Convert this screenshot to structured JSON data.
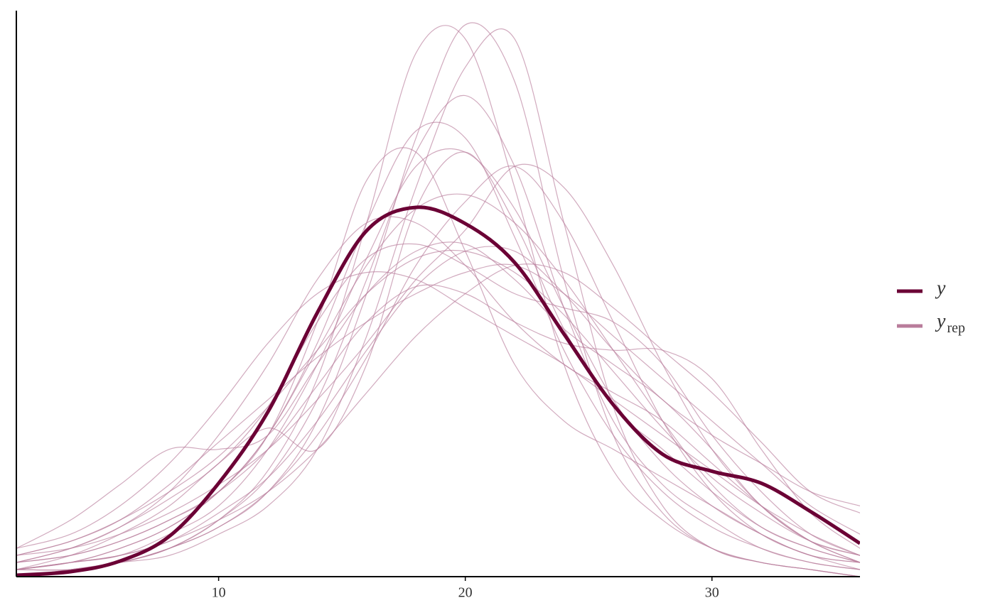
{
  "chart_data": {
    "type": "density",
    "x": [
      1.8,
      4,
      6,
      8,
      10,
      12,
      14,
      16,
      18,
      20,
      22,
      24,
      26,
      28,
      30,
      32,
      34,
      36
    ],
    "xlim": [
      1.8,
      36
    ],
    "xticks": [
      10,
      20,
      30
    ],
    "ylim": [
      0,
      0.08
    ],
    "series": [
      {
        "name": "y",
        "color": "#6b0035",
        "values": [
          0.0002,
          0.0007,
          0.0022,
          0.0057,
          0.0132,
          0.0233,
          0.0373,
          0.0489,
          0.0522,
          0.0499,
          0.0444,
          0.0343,
          0.0243,
          0.0173,
          0.0149,
          0.0132,
          0.0092,
          0.0047
        ]
      }
    ],
    "replicates": {
      "name": "y",
      "subscript": "rep",
      "color": "#b97c9b",
      "values": [
        [
          0.0,
          0.001,
          0.002,
          0.004,
          0.008,
          0.015,
          0.028,
          0.05,
          0.074,
          0.076,
          0.055,
          0.03,
          0.015,
          0.008,
          0.004,
          0.002,
          0.001,
          0.0
        ],
        [
          0.0,
          0.001,
          0.002,
          0.004,
          0.007,
          0.012,
          0.022,
          0.04,
          0.062,
          0.078,
          0.07,
          0.042,
          0.02,
          0.009,
          0.004,
          0.002,
          0.001,
          0.0
        ],
        [
          0.0,
          0.001,
          0.002,
          0.003,
          0.006,
          0.01,
          0.018,
          0.034,
          0.055,
          0.072,
          0.076,
          0.05,
          0.024,
          0.01,
          0.004,
          0.002,
          0.001,
          0.0
        ],
        [
          0.001,
          0.002,
          0.004,
          0.007,
          0.012,
          0.02,
          0.033,
          0.05,
          0.063,
          0.062,
          0.048,
          0.032,
          0.02,
          0.012,
          0.007,
          0.004,
          0.002,
          0.001
        ],
        [
          0.003,
          0.004,
          0.006,
          0.009,
          0.013,
          0.018,
          0.025,
          0.033,
          0.042,
          0.049,
          0.058,
          0.055,
          0.044,
          0.03,
          0.018,
          0.01,
          0.005,
          0.002
        ],
        [
          0.004,
          0.008,
          0.013,
          0.018,
          0.018,
          0.02,
          0.03,
          0.04,
          0.046,
          0.047,
          0.042,
          0.035,
          0.03,
          0.025,
          0.018,
          0.01,
          0.005,
          0.003
        ],
        [
          0.002,
          0.004,
          0.007,
          0.011,
          0.016,
          0.024,
          0.036,
          0.045,
          0.047,
          0.044,
          0.04,
          0.038,
          0.036,
          0.03,
          0.02,
          0.012,
          0.006,
          0.003
        ],
        [
          0.004,
          0.006,
          0.01,
          0.016,
          0.024,
          0.033,
          0.04,
          0.043,
          0.042,
          0.038,
          0.034,
          0.03,
          0.025,
          0.02,
          0.015,
          0.01,
          0.006,
          0.003
        ],
        [
          0.001,
          0.002,
          0.003,
          0.005,
          0.008,
          0.012,
          0.018,
          0.026,
          0.034,
          0.04,
          0.044,
          0.043,
          0.038,
          0.032,
          0.026,
          0.019,
          0.012,
          0.009
        ],
        [
          0.001,
          0.003,
          0.006,
          0.01,
          0.016,
          0.021,
          0.018,
          0.03,
          0.052,
          0.06,
          0.05,
          0.035,
          0.024,
          0.018,
          0.012,
          0.007,
          0.004,
          0.002
        ],
        [
          0.002,
          0.003,
          0.005,
          0.008,
          0.012,
          0.02,
          0.032,
          0.044,
          0.052,
          0.054,
          0.05,
          0.042,
          0.032,
          0.022,
          0.013,
          0.007,
          0.004,
          0.002
        ],
        [
          0.001,
          0.002,
          0.003,
          0.006,
          0.01,
          0.018,
          0.03,
          0.045,
          0.058,
          0.06,
          0.052,
          0.038,
          0.025,
          0.016,
          0.01,
          0.006,
          0.003,
          0.002
        ],
        [
          0.002,
          0.003,
          0.005,
          0.008,
          0.012,
          0.018,
          0.027,
          0.036,
          0.041,
          0.04,
          0.036,
          0.033,
          0.032,
          0.032,
          0.028,
          0.018,
          0.009,
          0.004
        ],
        [
          0.003,
          0.005,
          0.008,
          0.012,
          0.017,
          0.024,
          0.032,
          0.04,
          0.045,
          0.046,
          0.043,
          0.037,
          0.029,
          0.021,
          0.014,
          0.009,
          0.005,
          0.003
        ],
        [
          0.001,
          0.002,
          0.003,
          0.005,
          0.009,
          0.014,
          0.022,
          0.032,
          0.041,
          0.046,
          0.046,
          0.04,
          0.032,
          0.025,
          0.02,
          0.016,
          0.012,
          0.01
        ],
        [
          0.002,
          0.004,
          0.007,
          0.012,
          0.02,
          0.03,
          0.042,
          0.05,
          0.05,
          0.044,
          0.036,
          0.03,
          0.026,
          0.022,
          0.016,
          0.01,
          0.005,
          0.002
        ],
        [
          0.001,
          0.001,
          0.002,
          0.004,
          0.007,
          0.012,
          0.02,
          0.031,
          0.044,
          0.053,
          0.058,
          0.05,
          0.036,
          0.022,
          0.012,
          0.006,
          0.003,
          0.001
        ],
        [
          0.003,
          0.005,
          0.008,
          0.013,
          0.019,
          0.025,
          0.031,
          0.036,
          0.04,
          0.043,
          0.044,
          0.04,
          0.034,
          0.028,
          0.022,
          0.016,
          0.01,
          0.006
        ],
        [
          0.001,
          0.002,
          0.004,
          0.007,
          0.012,
          0.02,
          0.036,
          0.056,
          0.06,
          0.046,
          0.03,
          0.022,
          0.018,
          0.014,
          0.01,
          0.006,
          0.003,
          0.002
        ],
        [
          0.001,
          0.001,
          0.002,
          0.004,
          0.008,
          0.014,
          0.025,
          0.042,
          0.06,
          0.068,
          0.058,
          0.038,
          0.022,
          0.013,
          0.008,
          0.004,
          0.002,
          0.001
        ]
      ]
    }
  }
}
